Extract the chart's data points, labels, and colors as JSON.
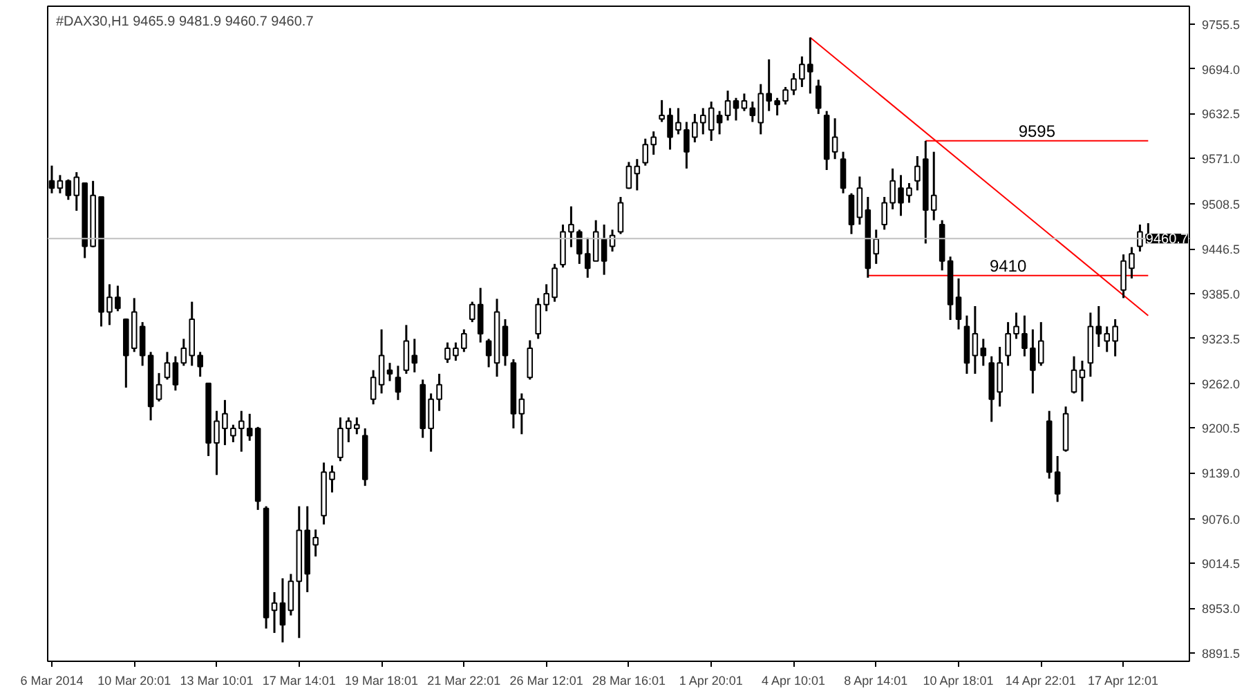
{
  "chart_data": {
    "type": "candlestick",
    "title": "#DAX30,H1  9465.9 9481.9 9460.7 9460.7",
    "color": "#000000",
    "categories": [
      "6 Mar 2014",
      null,
      null,
      null,
      null,
      null,
      null,
      null,
      null,
      null,
      "10 Mar 20:01",
      null,
      null,
      null,
      null,
      null,
      null,
      null,
      null,
      null,
      "13 Mar 10:01",
      null,
      null,
      null,
      null,
      null,
      null,
      null,
      null,
      null,
      "17 Mar 14:01",
      null,
      null,
      null,
      null,
      null,
      null,
      null,
      null,
      null,
      "19 Mar 18:01",
      null,
      null,
      null,
      null,
      null,
      null,
      null,
      null,
      null,
      "21 Mar 22:01",
      null,
      null,
      null,
      null,
      null,
      null,
      null,
      null,
      null,
      "26 Mar 12:01",
      null,
      null,
      null,
      null,
      null,
      null,
      null,
      null,
      null,
      "28 Mar 16:01",
      null,
      null,
      null,
      null,
      null,
      null,
      null,
      null,
      null,
      "1 Apr 20:01",
      null,
      null,
      null,
      null,
      null,
      null,
      null,
      null,
      null,
      "4 Apr 10:01",
      null,
      null,
      null,
      null,
      null,
      null,
      null,
      null,
      null,
      "8 Apr 14:01",
      null,
      null,
      null,
      null,
      null,
      null,
      null,
      null,
      null,
      "10 Apr 18:01",
      null,
      null,
      null,
      null,
      null,
      null,
      null,
      null,
      null,
      "14 Apr 22:01",
      null,
      null,
      null,
      null,
      null,
      null,
      null,
      null,
      null,
      "17 Apr 12:01",
      null,
      null,
      null
    ],
    "ohlc": [
      [
        9540,
        9561,
        9523,
        9530
      ],
      [
        9530,
        9548,
        9523,
        9540
      ],
      [
        9540,
        9542,
        9514,
        9520
      ],
      [
        9520,
        9552,
        9499,
        9545
      ],
      [
        9537,
        9537,
        9434,
        9450
      ],
      [
        9450,
        9540,
        9449,
        9520
      ],
      [
        9518,
        9518,
        9340,
        9360
      ],
      [
        9360,
        9398,
        9342,
        9380
      ],
      [
        9380,
        9396,
        9361,
        9365
      ],
      [
        9350,
        9351,
        9256,
        9300
      ],
      [
        9310,
        9379,
        9305,
        9360
      ],
      [
        9340,
        9346,
        9286,
        9300
      ],
      [
        9300,
        9305,
        9211,
        9230
      ],
      [
        9240,
        9276,
        9237,
        9260
      ],
      [
        9270,
        9305,
        9267,
        9290
      ],
      [
        9290,
        9299,
        9252,
        9260
      ],
      [
        9290,
        9323,
        9286,
        9310
      ],
      [
        9300,
        9374,
        9286,
        9350
      ],
      [
        9300,
        9305,
        9271,
        9285
      ],
      [
        9262,
        9262,
        9162,
        9180
      ],
      [
        9180,
        9224,
        9136,
        9210
      ],
      [
        9200,
        9239,
        9177,
        9220
      ],
      [
        9190,
        9205,
        9181,
        9200
      ],
      [
        9200,
        9224,
        9168,
        9210
      ],
      [
        9200,
        9220,
        9183,
        9190
      ],
      [
        9200,
        9202,
        9088,
        9100
      ],
      [
        9090,
        9093,
        8925,
        8940
      ],
      [
        8950,
        8975,
        8919,
        8960
      ],
      [
        8960,
        8994,
        8906,
        8930
      ],
      [
        8950,
        9000,
        8943,
        8990
      ],
      [
        8990,
        9093,
        8912,
        9060
      ],
      [
        9060,
        9093,
        8975,
        9000
      ],
      [
        9040,
        9061,
        9024,
        9050
      ],
      [
        9080,
        9153,
        9068,
        9140
      ],
      [
        9130,
        9149,
        9112,
        9140
      ],
      [
        9160,
        9215,
        9155,
        9200
      ],
      [
        9200,
        9215,
        9181,
        9210
      ],
      [
        9200,
        9215,
        9192,
        9205
      ],
      [
        9190,
        9200,
        9121,
        9130
      ],
      [
        9240,
        9280,
        9233,
        9270
      ],
      [
        9260,
        9336,
        9248,
        9300
      ],
      [
        9280,
        9290,
        9265,
        9275
      ],
      [
        9270,
        9286,
        9239,
        9250
      ],
      [
        9280,
        9342,
        9275,
        9320
      ],
      [
        9300,
        9323,
        9277,
        9290
      ],
      [
        9260,
        9267,
        9187,
        9200
      ],
      [
        9200,
        9248,
        9168,
        9240
      ],
      [
        9240,
        9275,
        9224,
        9260
      ],
      [
        9295,
        9318,
        9290,
        9310
      ],
      [
        9300,
        9318,
        9293,
        9310
      ],
      [
        9310,
        9336,
        9305,
        9330
      ],
      [
        9350,
        9374,
        9346,
        9370
      ],
      [
        9370,
        9393,
        9318,
        9330
      ],
      [
        9320,
        9323,
        9284,
        9300
      ],
      [
        9290,
        9378,
        9271,
        9360
      ],
      [
        9340,
        9350,
        9286,
        9300
      ],
      [
        9290,
        9295,
        9200,
        9220
      ],
      [
        9220,
        9248,
        9192,
        9240
      ],
      [
        9270,
        9321,
        9267,
        9310
      ],
      [
        9330,
        9379,
        9323,
        9370
      ],
      [
        9370,
        9398,
        9361,
        9385
      ],
      [
        9380,
        9426,
        9374,
        9420
      ],
      [
        9425,
        9480,
        9421,
        9470
      ],
      [
        9470,
        9505,
        9449,
        9480
      ],
      [
        9470,
        9473,
        9426,
        9440
      ],
      [
        9440,
        9462,
        9407,
        9420
      ],
      [
        9430,
        9486,
        9430,
        9470
      ],
      [
        9460,
        9480,
        9411,
        9430
      ],
      [
        9450,
        9473,
        9443,
        9465
      ],
      [
        9470,
        9518,
        9467,
        9510
      ],
      [
        9530,
        9566,
        9529,
        9560
      ],
      [
        9550,
        9570,
        9527,
        9560
      ],
      [
        9565,
        9598,
        9561,
        9590
      ],
      [
        9590,
        9608,
        9576,
        9600
      ],
      [
        9625,
        9651,
        9621,
        9630
      ],
      [
        9630,
        9640,
        9583,
        9600
      ],
      [
        9610,
        9640,
        9604,
        9620
      ],
      [
        9610,
        9621,
        9557,
        9580
      ],
      [
        9600,
        9632,
        9593,
        9620
      ],
      [
        9620,
        9640,
        9604,
        9630
      ],
      [
        9610,
        9649,
        9595,
        9640
      ],
      [
        9630,
        9636,
        9604,
        9620
      ],
      [
        9630,
        9664,
        9623,
        9650
      ],
      [
        9650,
        9654,
        9623,
        9640
      ],
      [
        9640,
        9660,
        9636,
        9650
      ],
      [
        9640,
        9649,
        9621,
        9630
      ],
      [
        9620,
        9673,
        9604,
        9660
      ],
      [
        9660,
        9707,
        9636,
        9650
      ],
      [
        9650,
        9654,
        9630,
        9645
      ],
      [
        9650,
        9669,
        9645,
        9665
      ],
      [
        9665,
        9688,
        9658,
        9680
      ],
      [
        9680,
        9711,
        9669,
        9700
      ],
      [
        9700,
        9737,
        9660,
        9690
      ],
      [
        9670,
        9679,
        9632,
        9640
      ],
      [
        9630,
        9636,
        9555,
        9570
      ],
      [
        9580,
        9626,
        9570,
        9600
      ],
      [
        9570,
        9580,
        9523,
        9530
      ],
      [
        9520,
        9523,
        9467,
        9480
      ],
      [
        9490,
        9546,
        9480,
        9530
      ],
      [
        9500,
        9518,
        9407,
        9420
      ],
      [
        9440,
        9473,
        9426,
        9460
      ],
      [
        9480,
        9518,
        9473,
        9510
      ],
      [
        9510,
        9557,
        9501,
        9540
      ],
      [
        9530,
        9548,
        9492,
        9510
      ],
      [
        9520,
        9537,
        9510,
        9530
      ],
      [
        9540,
        9574,
        9527,
        9560
      ],
      [
        9570,
        9595,
        9454,
        9500
      ],
      [
        9500,
        9580,
        9486,
        9520
      ],
      [
        9480,
        9486,
        9417,
        9430
      ],
      [
        9430,
        9436,
        9349,
        9370
      ],
      [
        9380,
        9406,
        9336,
        9350
      ],
      [
        9340,
        9355,
        9275,
        9290
      ],
      [
        9300,
        9368,
        9275,
        9330
      ],
      [
        9310,
        9323,
        9286,
        9300
      ],
      [
        9290,
        9299,
        9209,
        9240
      ],
      [
        9250,
        9312,
        9230,
        9290
      ],
      [
        9300,
        9346,
        9286,
        9330
      ],
      [
        9330,
        9359,
        9323,
        9340
      ],
      [
        9330,
        9355,
        9299,
        9310
      ],
      [
        9310,
        9336,
        9248,
        9280
      ],
      [
        9290,
        9346,
        9286,
        9320
      ],
      [
        9210,
        9224,
        9131,
        9140
      ],
      [
        9140,
        9162,
        9099,
        9110
      ],
      [
        9170,
        9230,
        9168,
        9220
      ],
      [
        9250,
        9299,
        9248,
        9280
      ],
      [
        9270,
        9293,
        9237,
        9280
      ],
      [
        9290,
        9359,
        9271,
        9340
      ],
      [
        9340,
        9368,
        9312,
        9330
      ],
      [
        9320,
        9340,
        9305,
        9330
      ],
      [
        9320,
        9350,
        9299,
        9340
      ],
      [
        9390,
        9439,
        9379,
        9430
      ],
      [
        9420,
        9449,
        9406,
        9440
      ],
      [
        9450,
        9480,
        9443,
        9470
      ],
      [
        9465.9,
        9481.9,
        9460.7,
        9460.7
      ]
    ],
    "series": [
      {
        "type": "line",
        "color": "#ff0000",
        "values": [
          null,
          null,
          null,
          null,
          null,
          null,
          null,
          null,
          null,
          null,
          null,
          null,
          null,
          null,
          null,
          null,
          null,
          null,
          null,
          null,
          null,
          null,
          null,
          null,
          null,
          null,
          null,
          null,
          null,
          null,
          null,
          null,
          null,
          null,
          null,
          null,
          null,
          null,
          null,
          null,
          null,
          null,
          null,
          null,
          null,
          null,
          null,
          null,
          null,
          null,
          null,
          null,
          null,
          null,
          null,
          null,
          null,
          null,
          null,
          null,
          null,
          null,
          null,
          null,
          null,
          null,
          null,
          null,
          null,
          null,
          null,
          null,
          null,
          null,
          null,
          null,
          null,
          null,
          null,
          null,
          null,
          null,
          null,
          null,
          null,
          null,
          null,
          null,
          null,
          null,
          null,
          null,
          9737,
          null,
          null,
          null,
          null,
          null,
          null,
          null,
          null,
          null,
          null,
          null,
          null,
          null,
          null,
          null,
          null,
          null,
          null,
          null,
          null,
          null,
          null,
          null,
          null,
          null,
          null,
          null,
          null,
          null,
          null,
          null,
          null,
          null,
          null,
          null,
          null,
          null,
          null,
          null,
          null,
          9355
        ]
      },
      {
        "type": "line",
        "color": "#ff0000",
        "name": "9595",
        "values": [
          null,
          null,
          null,
          null,
          null,
          null,
          null,
          null,
          null,
          null,
          null,
          null,
          null,
          null,
          null,
          null,
          null,
          null,
          null,
          null,
          null,
          null,
          null,
          null,
          null,
          null,
          null,
          null,
          null,
          null,
          null,
          null,
          null,
          null,
          null,
          null,
          null,
          null,
          null,
          null,
          null,
          null,
          null,
          null,
          null,
          null,
          null,
          null,
          null,
          null,
          null,
          null,
          null,
          null,
          null,
          null,
          null,
          null,
          null,
          null,
          null,
          null,
          null,
          null,
          null,
          null,
          null,
          null,
          null,
          null,
          null,
          null,
          null,
          null,
          null,
          null,
          null,
          null,
          null,
          null,
          null,
          null,
          null,
          null,
          null,
          null,
          null,
          null,
          null,
          null,
          null,
          null,
          null,
          null,
          null,
          null,
          null,
          null,
          null,
          null,
          null,
          null,
          null,
          null,
          null,
          null,
          9595,
          null,
          null,
          null,
          null,
          null,
          null,
          null,
          null,
          null,
          null,
          null,
          null,
          null,
          null,
          null,
          null,
          null,
          null,
          null,
          null,
          null,
          null,
          null,
          null,
          null,
          null,
          9595
        ]
      },
      {
        "type": "line",
        "color": "#ff0000",
        "name": "9410",
        "values": [
          null,
          null,
          null,
          null,
          null,
          null,
          null,
          null,
          null,
          null,
          null,
          null,
          null,
          null,
          null,
          null,
          null,
          null,
          null,
          null,
          null,
          null,
          null,
          null,
          null,
          null,
          null,
          null,
          null,
          null,
          null,
          null,
          null,
          null,
          null,
          null,
          null,
          null,
          null,
          null,
          null,
          null,
          null,
          null,
          null,
          null,
          null,
          null,
          null,
          null,
          null,
          null,
          null,
          null,
          null,
          null,
          null,
          null,
          null,
          null,
          null,
          null,
          null,
          null,
          null,
          null,
          null,
          null,
          null,
          null,
          null,
          null,
          null,
          null,
          null,
          null,
          null,
          null,
          null,
          null,
          null,
          null,
          null,
          null,
          null,
          null,
          null,
          null,
          null,
          null,
          null,
          null,
          null,
          null,
          null,
          null,
          null,
          null,
          null,
          9410,
          null,
          null,
          null,
          null,
          null,
          null,
          null,
          null,
          null,
          null,
          null,
          null,
          null,
          null,
          null,
          null,
          null,
          null,
          null,
          null,
          null,
          null,
          null,
          null,
          null,
          null,
          null,
          null,
          null,
          null,
          null,
          null,
          null,
          9410
        ]
      }
    ],
    "ref_lines": [
      {
        "axis": "y",
        "value": 9460.7,
        "label": "9460.7",
        "color": "#c0c0c0"
      }
    ],
    "ylim": [
      8880,
      9780
    ],
    "yticks": [
      {
        "value": 8891.5,
        "label": "8891.5"
      },
      {
        "value": 8953,
        "label": "8953.0"
      },
      {
        "value": 9014.5,
        "label": "9014.5"
      },
      {
        "value": 9076,
        "label": "9076.0"
      },
      {
        "value": 9139,
        "label": "9139.0"
      },
      {
        "value": 9200.5,
        "label": "9200.5"
      },
      {
        "value": 9262,
        "label": "9262.0"
      },
      {
        "value": 9323.5,
        "label": "9323.5"
      },
      {
        "value": 9385,
        "label": "9385.0"
      },
      {
        "value": 9446.5,
        "label": "9446.5"
      },
      {
        "value": 9508.5,
        "label": "9508.5"
      },
      {
        "value": 9571,
        "label": "9571.0"
      },
      {
        "value": 9632.5,
        "label": "9632.5"
      },
      {
        "value": 9694,
        "label": "9694.0"
      },
      {
        "value": 9755.5,
        "label": "9755.5"
      }
    ],
    "grid": false
  }
}
